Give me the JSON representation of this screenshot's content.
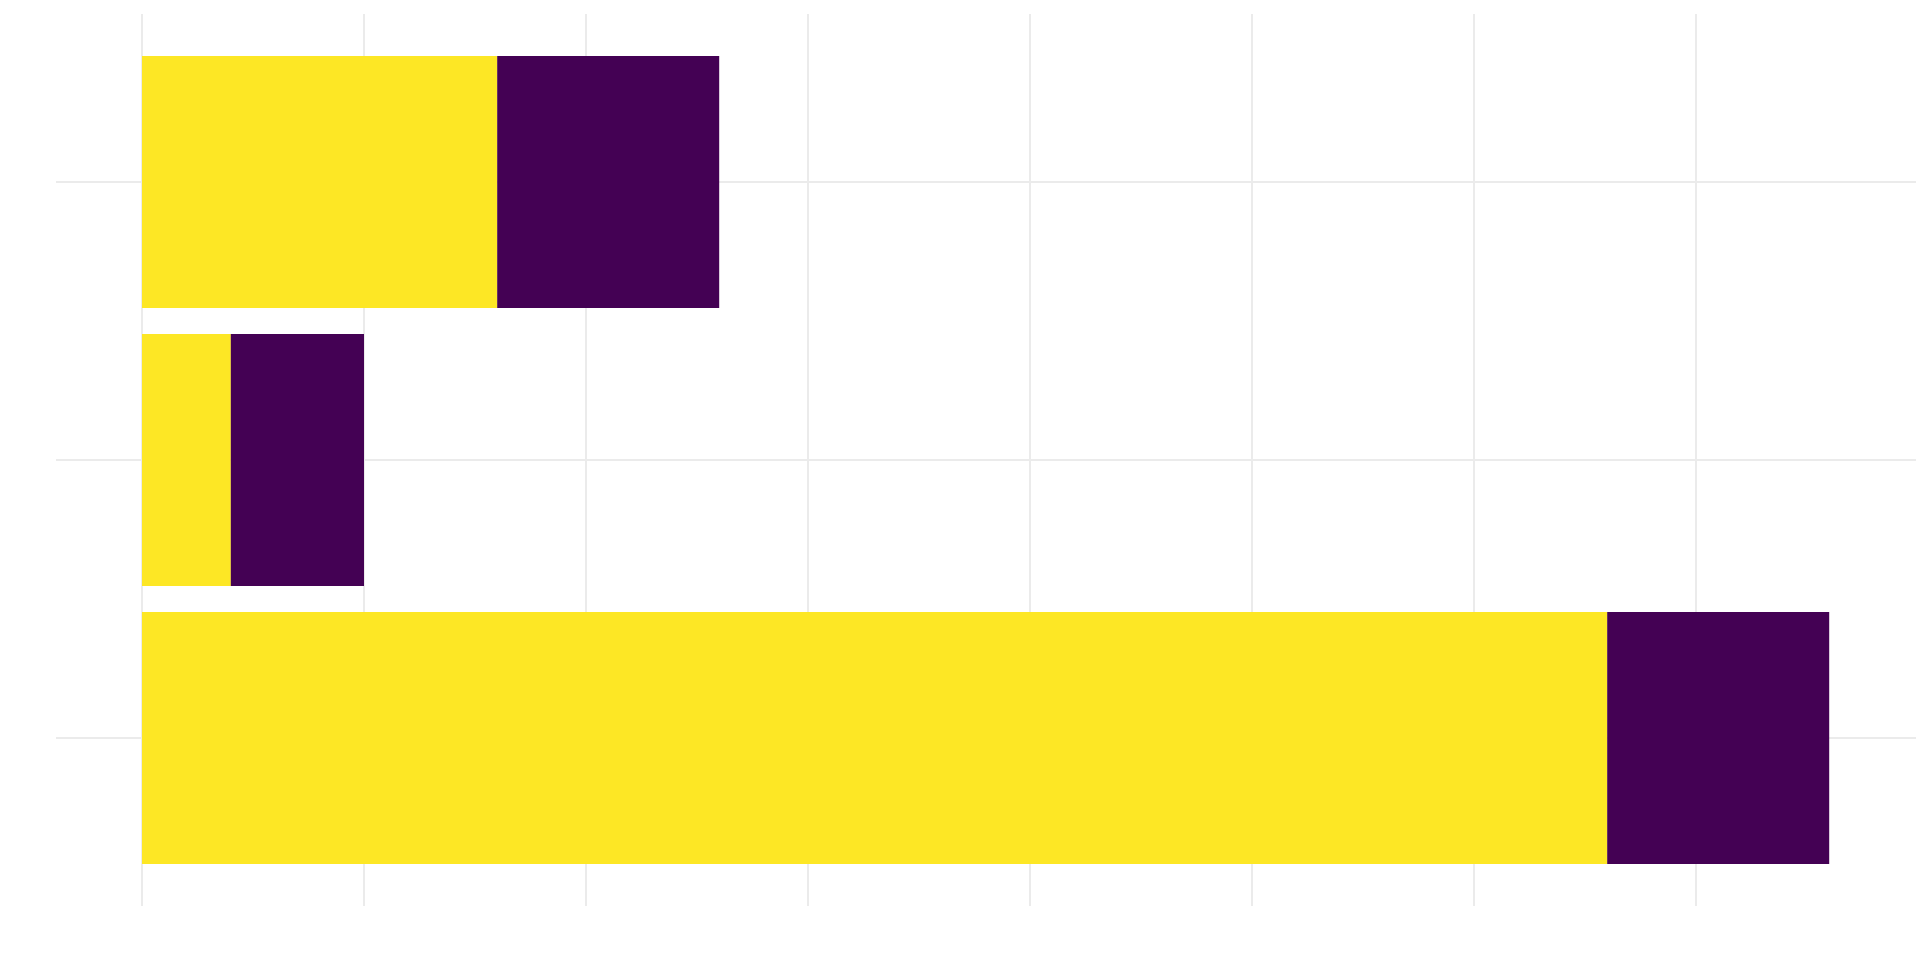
{
  "chart_data": {
    "type": "bar",
    "orientation": "horizontal",
    "stacked": true,
    "categories": [
      "",
      "",
      ""
    ],
    "series": [
      {
        "color": "#FDE725",
        "values": [
          1.6,
          0.4,
          6.6
        ]
      },
      {
        "color": "#440154",
        "values": [
          1.0,
          0.6,
          1.0
        ]
      }
    ],
    "xlim": [
      0,
      7.6
    ],
    "x_gridlines": [
      0,
      1,
      2,
      3,
      4,
      5,
      6,
      7
    ],
    "grid": true,
    "legend": "none",
    "title": "",
    "xlabel": "",
    "ylabel": ""
  }
}
